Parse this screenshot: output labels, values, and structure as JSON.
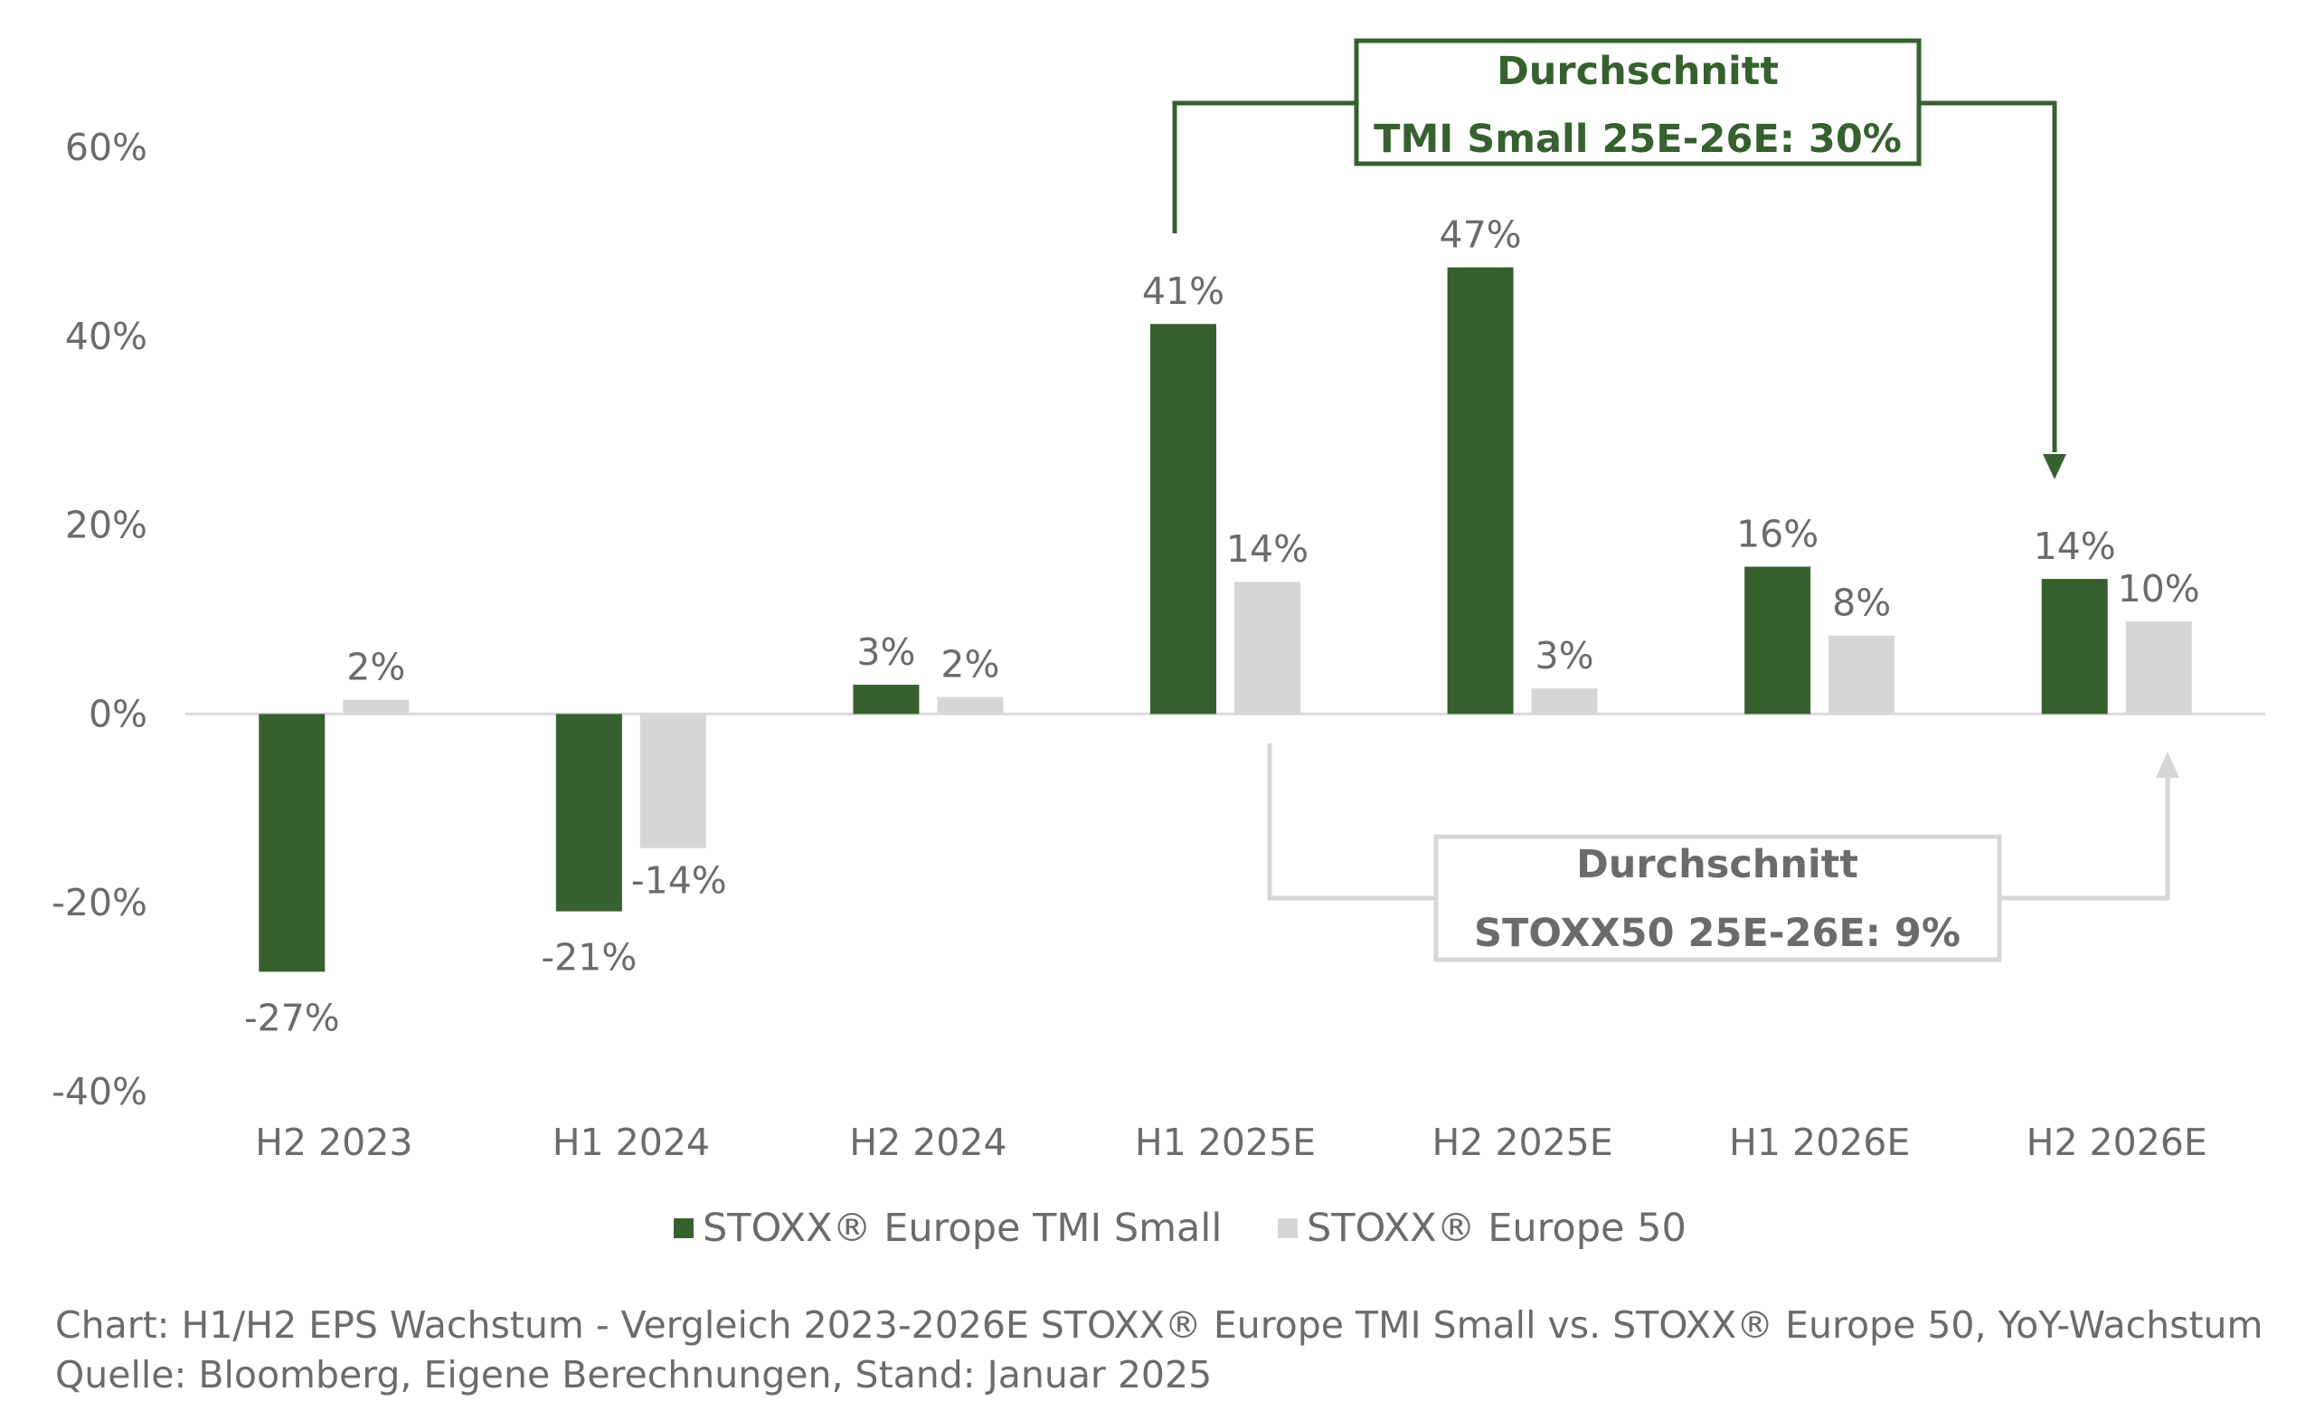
{
  "colors": {
    "tmi_small": "#36612f",
    "europe50": "#d6d6d6",
    "text": "#6b6b6b"
  },
  "chart_data": {
    "type": "bar",
    "categories": [
      "H2 2023",
      "H1 2024",
      "H2 2024",
      "H1 2025E",
      "H2 2025E",
      "H1 2026E",
      "H2 2026E"
    ],
    "series": [
      {
        "name": "STOXX® Europe TMI Small",
        "values": [
          -27.3,
          -20.9,
          3.1,
          41.3,
          47.3,
          15.6,
          14.3
        ],
        "labels": [
          "-27%",
          "-21%",
          "3%",
          "41%",
          "47%",
          "16%",
          "14%"
        ]
      },
      {
        "name": "STOXX® Europe 50",
        "values": [
          1.5,
          -14.2,
          1.8,
          14.0,
          2.7,
          8.3,
          9.8
        ],
        "labels": [
          "2%",
          "-14%",
          "2%",
          "14%",
          "3%",
          "8%",
          "10%"
        ]
      }
    ],
    "ylim": [
      -40,
      60
    ],
    "yticks": [
      60,
      40,
      20,
      0,
      -20,
      -40
    ],
    "ytick_labels": [
      "60%",
      "40%",
      "20%",
      "0%",
      "-20%",
      "-40%"
    ],
    "legend": "bottom",
    "grid": false,
    "annotations": [
      {
        "series": "STOXX® Europe TMI Small",
        "line1": "Durchschnitt",
        "line2": "TMI Small 25E-26E: 30%",
        "from": "H1 2025E",
        "to": "H2 2026E",
        "position": "above"
      },
      {
        "series": "STOXX® Europe 50",
        "line1": "Durchschnitt",
        "line2": "STOXX50 25E-26E: 9%",
        "from": "H1 2025E",
        "to": "H2 2026E",
        "position": "below"
      }
    ]
  },
  "footer": {
    "line1": "Chart: H1/H2 EPS Wachstum - Vergleich 2023-2026E STOXX® Europe TMI Small vs. STOXX® Europe 50, YoY-Wachstum",
    "line2": "Quelle: Bloomberg, Eigene Berechnungen, Stand: Januar 2025"
  }
}
